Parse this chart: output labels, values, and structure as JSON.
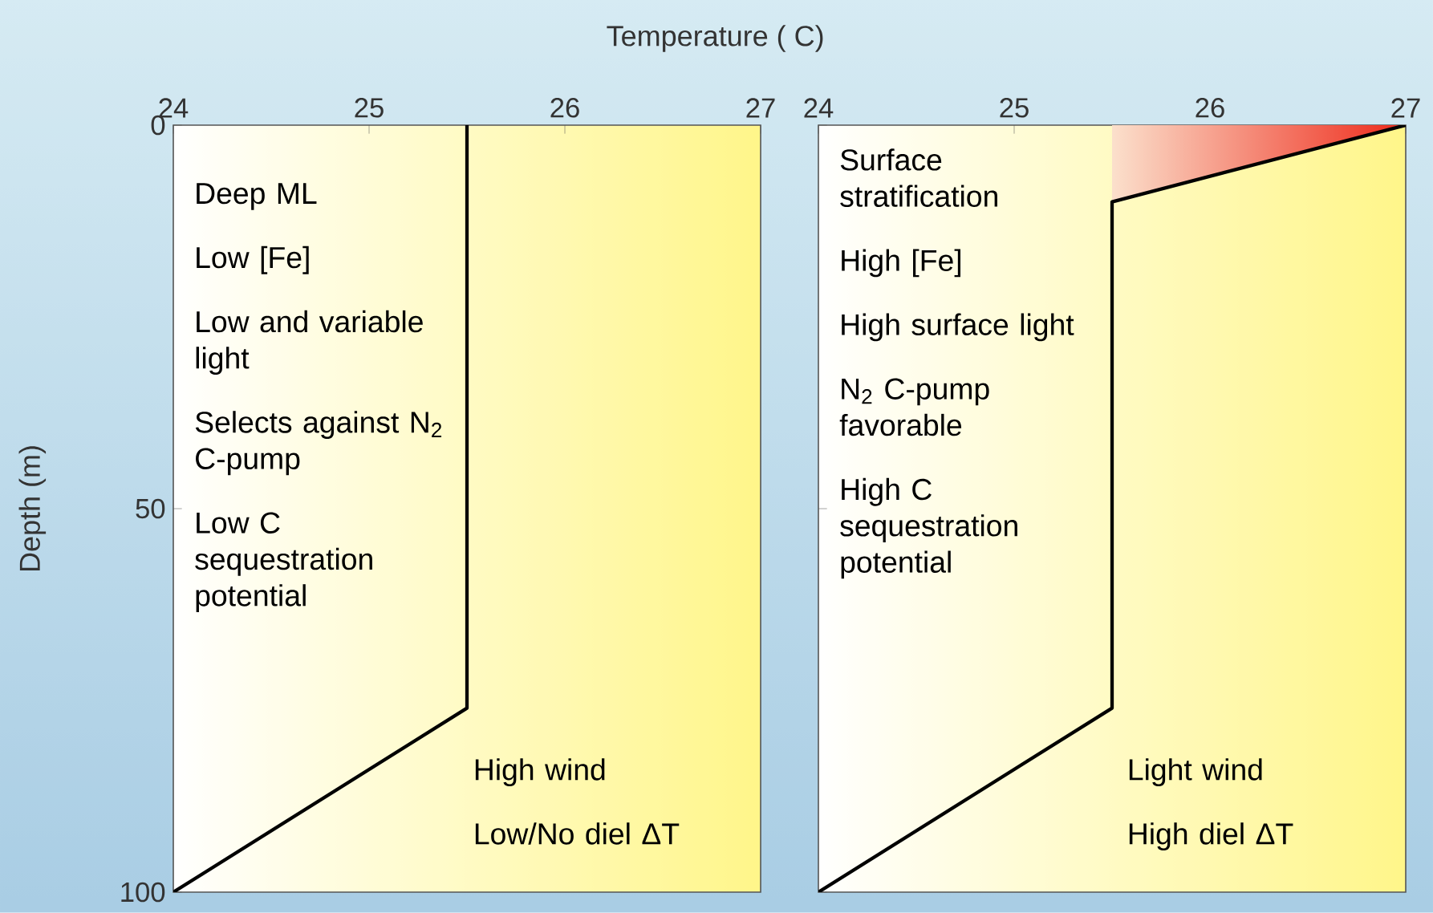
{
  "chart_data": [
    {
      "type": "line",
      "xlabel": "Temperature ( C)",
      "ylabel": "Depth (m)",
      "xlim": [
        24,
        27
      ],
      "xticks": [
        24,
        25,
        26,
        27
      ],
      "ylim": [
        100,
        0
      ],
      "yticks": [
        0,
        50,
        100
      ],
      "marker": "none",
      "series": [
        {
          "color": "#000000",
          "x": [
            25.5,
            25.5,
            24
          ],
          "values": [
            0,
            76,
            100
          ]
        }
      ],
      "annotations": [
        "Deep ML",
        "Low [Fe]",
        "Low and variable light",
        "Selects against N$_{2}$ C-pump",
        "Low C sequestration potential",
        "High wind",
        "Low/No diel ΔT"
      ]
    },
    {
      "type": "line",
      "xlim": [
        24,
        27
      ],
      "xticks": [
        24,
        25,
        26,
        27
      ],
      "ylim": [
        100,
        0
      ],
      "yticks": [
        0,
        50,
        100
      ],
      "marker": "none",
      "tick_labels": "x",
      "series": [
        {
          "color": "#000000",
          "x": [
            27,
            25.5,
            25.5,
            24
          ],
          "values": [
            0,
            10,
            76,
            100
          ],
          "lower": [
            0,
            10,
            null,
            null
          ],
          "upper": [
            0,
            0,
            null,
            null
          ]
        }
      ],
      "annotations": [
        "Surface stratification",
        "High [Fe]",
        "High surface light",
        "N$_{2}$ C-pump favorable",
        "High C sequestration potential",
        "Light wind",
        "High diel ΔT"
      ]
    }
  ]
}
